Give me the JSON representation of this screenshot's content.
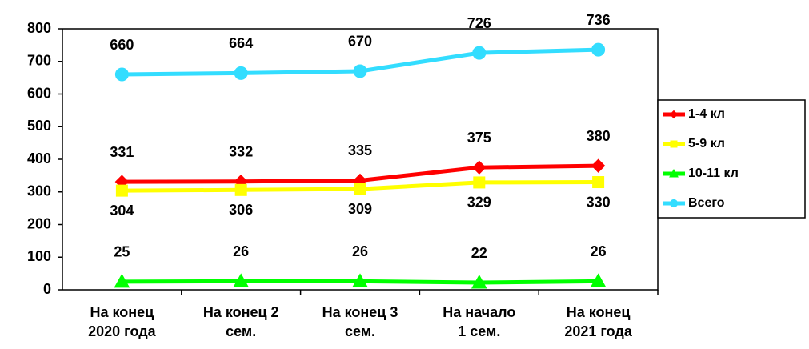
{
  "chart_data": {
    "type": "line",
    "categories": [
      "На конец\n2020 года",
      "На конец 2\nсем.",
      "На конец 3\nсем.",
      "На начало\n1 сем.",
      "На конец\n2021 года"
    ],
    "series": [
      {
        "name": "1-4 кл",
        "color": "#ff0000",
        "marker": "diamond",
        "values": [
          331,
          332,
          335,
          375,
          380
        ],
        "label_position": "above"
      },
      {
        "name": "5-9 кл",
        "color": "#ffff00",
        "marker": "square",
        "values": [
          304,
          306,
          309,
          329,
          330
        ],
        "label_position": "below"
      },
      {
        "name": "10-11 кл",
        "color": "#00ff00",
        "marker": "triangle",
        "values": [
          25,
          26,
          26,
          22,
          26
        ],
        "label_position": "above"
      },
      {
        "name": "Всего",
        "color": "#33ddff",
        "marker": "circle",
        "values": [
          660,
          664,
          670,
          726,
          736
        ],
        "label_position": "above"
      }
    ],
    "ylim": [
      0,
      800
    ],
    "yticks": [
      0,
      100,
      200,
      300,
      400,
      500,
      600,
      700,
      800
    ],
    "legend": "right"
  }
}
